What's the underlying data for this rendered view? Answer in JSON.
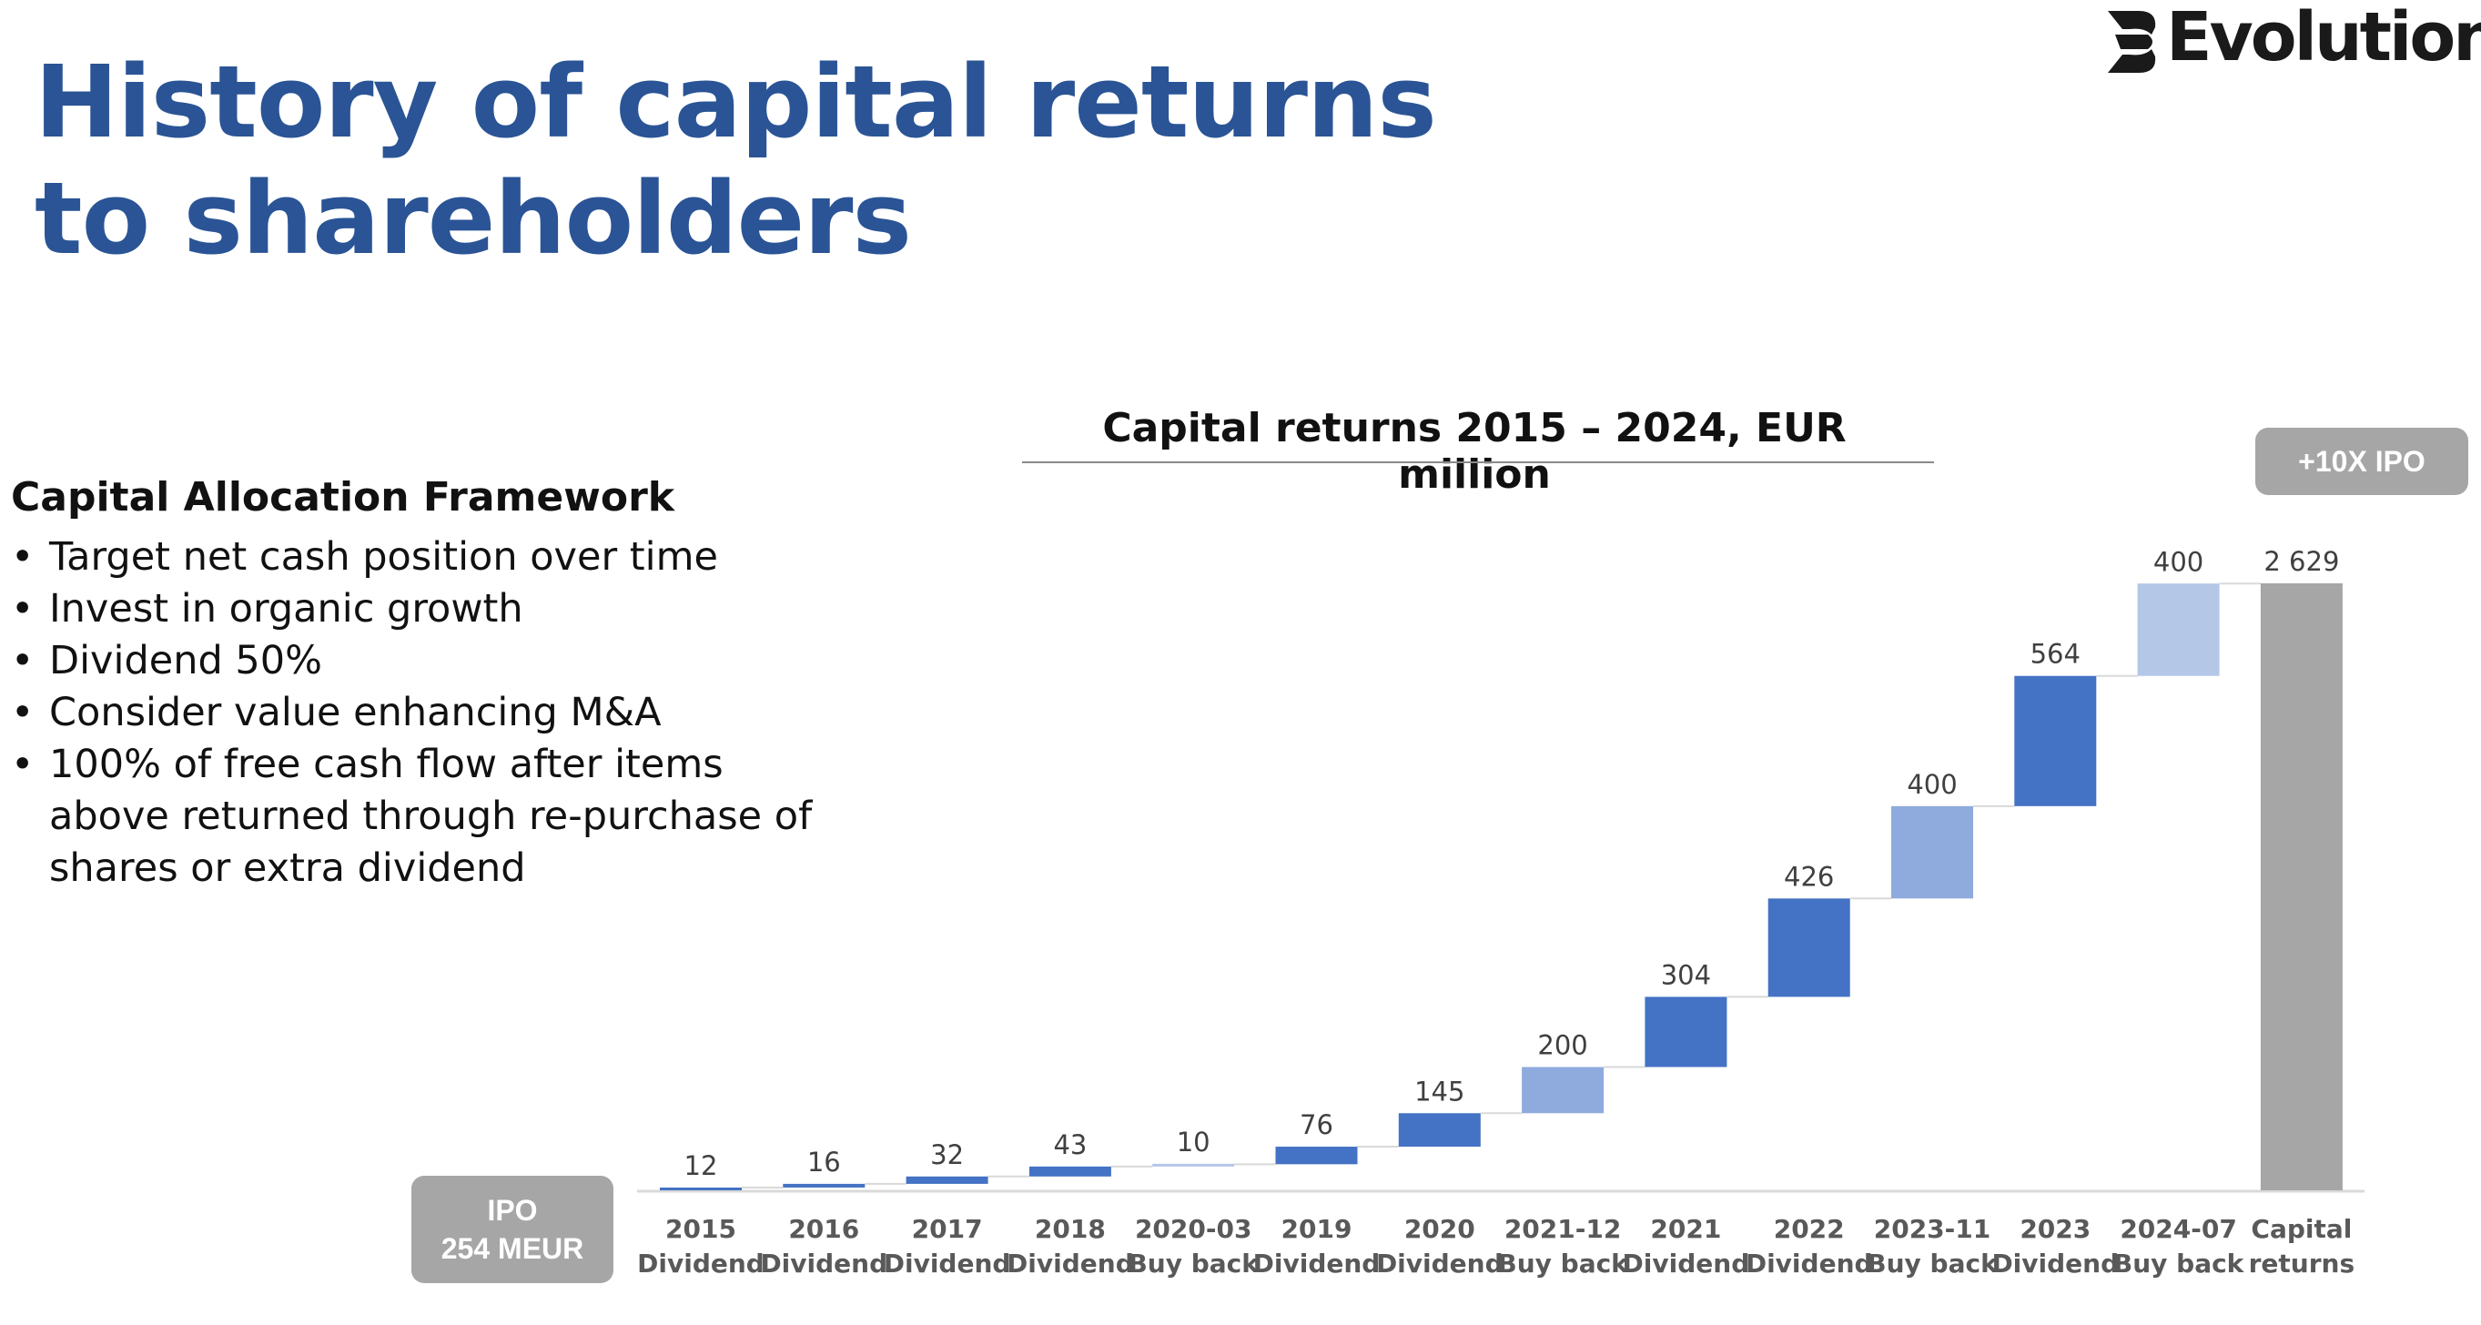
{
  "title": "History of capital returns to shareholders",
  "logo": {
    "text": "Evolution",
    "icon": "evolution-logo-icon"
  },
  "framework": {
    "heading": "Capital Allocation Framework",
    "items": [
      "Target net cash position over time",
      "Invest in organic growth",
      "Dividend 50%",
      "Consider value enhancing M&A",
      "100% of free cash flow after items above returned through re-purchase of shares or extra dividend"
    ]
  },
  "badges": {
    "top": "+10X IPO",
    "ipo_line1": "IPO",
    "ipo_line2": "254 MEUR"
  },
  "colors": {
    "title": "#2a5495",
    "dividend": "#4472c4",
    "buyback_2021": "#8faadc",
    "buyback_2023": "#8faadc",
    "buyback_2024": "#b4c7e7",
    "total": "#a6a6a6",
    "badge": "#a6a6a6"
  },
  "chart_data": {
    "type": "bar",
    "subtype": "waterfall",
    "title": "Capital returns 2015 – 2024, EUR million",
    "categories": [
      [
        "2015",
        "Dividend"
      ],
      [
        "2016",
        "Dividend"
      ],
      [
        "2017",
        "Dividend"
      ],
      [
        "2018",
        "Dividend"
      ],
      [
        "2020-03",
        "Buy back"
      ],
      [
        "2019",
        "Dividend"
      ],
      [
        "2020",
        "Dividend"
      ],
      [
        "2021-12",
        "Buy back"
      ],
      [
        "2021",
        "Dividend"
      ],
      [
        "2022",
        "Dividend"
      ],
      [
        "2023-11",
        "Buy back"
      ],
      [
        "2023",
        "Dividend"
      ],
      [
        "2024-07",
        "Buy back"
      ],
      [
        "Capital",
        "returns"
      ]
    ],
    "values": [
      12,
      16,
      32,
      43,
      10,
      76,
      145,
      200,
      304,
      426,
      400,
      564,
      400,
      2629
    ],
    "value_labels": [
      "12",
      "16",
      "32",
      "43",
      "10",
      "76",
      "145",
      "200",
      "304",
      "426",
      "400",
      "564",
      "400",
      "2 629"
    ],
    "kinds": [
      "dividend",
      "dividend",
      "dividend",
      "dividend",
      "buyback_light",
      "dividend",
      "dividend",
      "buyback_mid",
      "dividend",
      "dividend",
      "buyback_mid",
      "dividend",
      "buyback_light2",
      "total"
    ],
    "ylim": [
      0,
      2629
    ],
    "grid": false,
    "legend": "none"
  }
}
